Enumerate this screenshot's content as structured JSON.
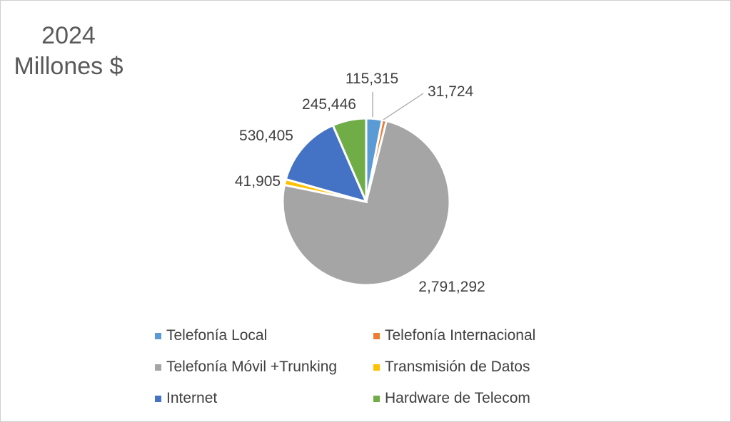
{
  "chart_data": {
    "type": "pie",
    "title": [
      "2024",
      "Millones $"
    ],
    "slices": [
      {
        "label": "Telefonía Local",
        "value": 115315,
        "value_label": "115,315",
        "color": "#5B9BD5"
      },
      {
        "label": "Telefonía Internacional",
        "value": 31724,
        "value_label": "31,724",
        "color": "#ED7D31"
      },
      {
        "label": "Telefonía Móvil +Trunking",
        "value": 2791292,
        "value_label": "2,791,292",
        "color": "#A5A5A5"
      },
      {
        "label": "Transmisión de Datos",
        "value": 41905,
        "value_label": "41,905",
        "color": "#FFC000"
      },
      {
        "label": "Internet",
        "value": 530405,
        "value_label": "530,405",
        "color": "#4472C4"
      },
      {
        "label": "Hardware de Telecom",
        "value": 245446,
        "value_label": "245,446",
        "color": "#70AD47"
      }
    ],
    "legend_position": "bottom"
  }
}
